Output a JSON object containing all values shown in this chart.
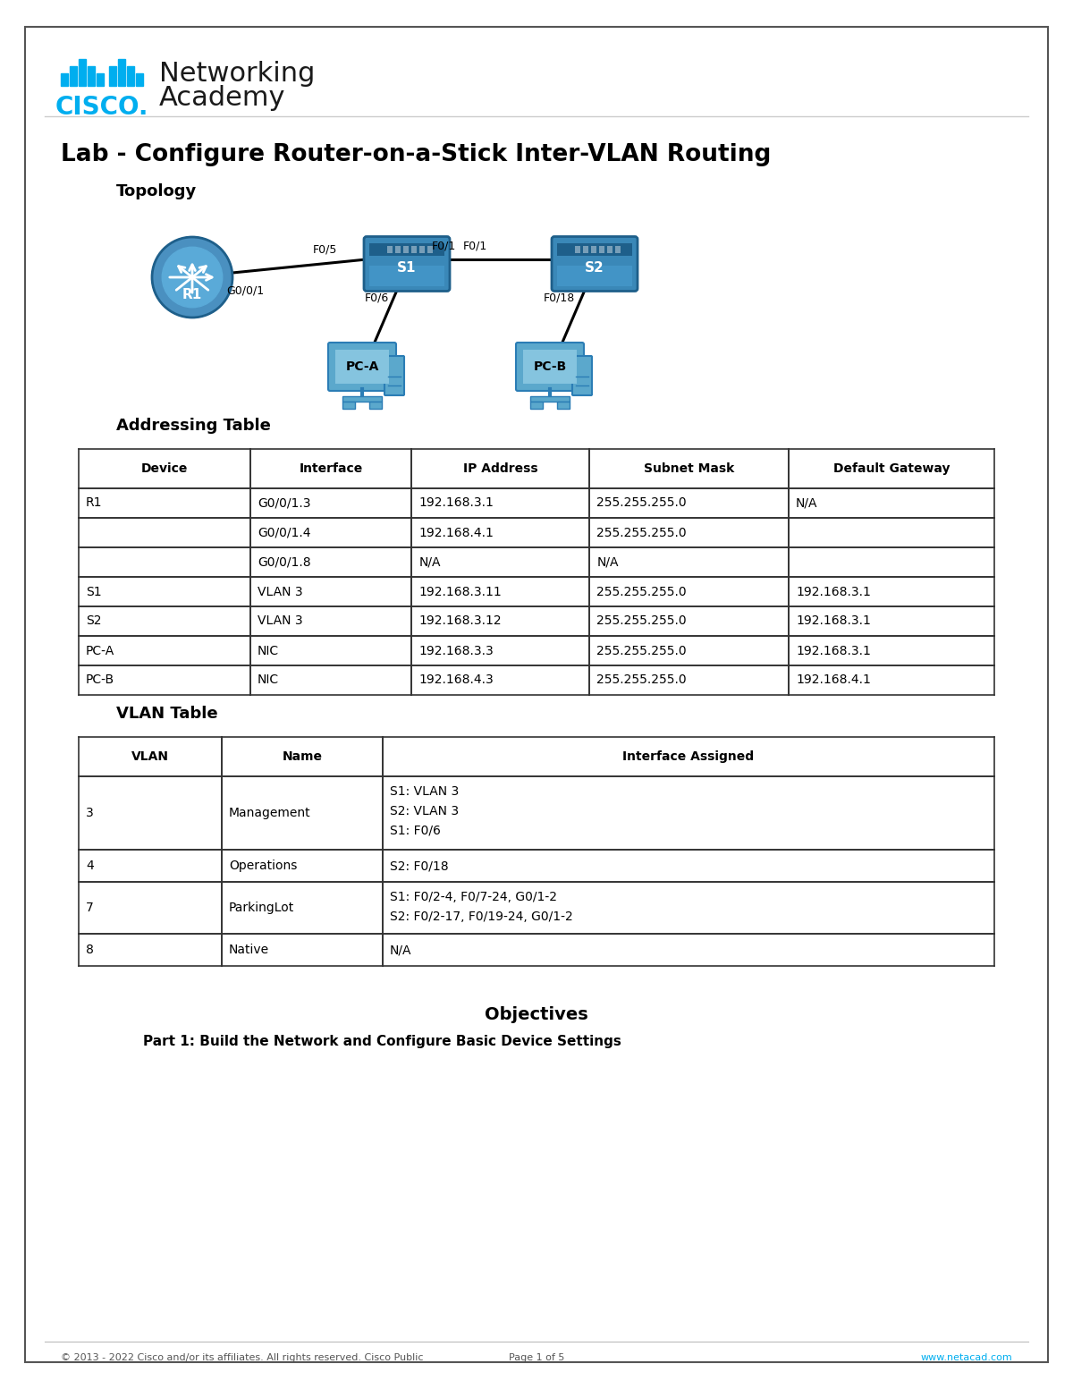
{
  "title": "Lab - Configure Router-on-a-Stick Inter-VLAN Routing",
  "topology_label": "Topology",
  "addressing_table_title": "Addressing Table",
  "vlan_table_title": "VLAN Table",
  "objectives_title": "Objectives",
  "objectives_part1": "Part 1: Build the Network and Configure Basic Device Settings",
  "footer_left": "© 2013 - 2022 Cisco and/or its affiliates. All rights reserved. Cisco Public",
  "footer_center": "Page 1 of 5",
  "footer_right": "www.netacad.com",
  "cisco_blue": "#00aeef",
  "text_dark": "#1a1a1a",
  "addressing_headers": [
    "Device",
    "Interface",
    "IP Address",
    "Subnet Mask",
    "Default Gateway"
  ],
  "addressing_rows": [
    [
      "R1",
      "G0/0/1.3",
      "192.168.3.1",
      "255.255.255.0",
      "N/A"
    ],
    [
      "",
      "G0/0/1.4",
      "192.168.4.1",
      "255.255.255.0",
      ""
    ],
    [
      "",
      "G0/0/1.8",
      "N/A",
      "N/A",
      ""
    ],
    [
      "S1",
      "VLAN 3",
      "192.168.3.11",
      "255.255.255.0",
      "192.168.3.1"
    ],
    [
      "S2",
      "VLAN 3",
      "192.168.3.12",
      "255.255.255.0",
      "192.168.3.1"
    ],
    [
      "PC-A",
      "NIC",
      "192.168.3.3",
      "255.255.255.0",
      "192.168.3.1"
    ],
    [
      "PC-B",
      "NIC",
      "192.168.4.3",
      "255.255.255.0",
      "192.168.4.1"
    ]
  ],
  "vlan_headers": [
    "VLAN",
    "Name",
    "Interface Assigned"
  ],
  "vlan_rows": [
    [
      "3",
      "Management",
      "S1: VLAN 3\nS2: VLAN 3\nS1: F0/6"
    ],
    [
      "4",
      "Operations",
      "S2: F0/18"
    ],
    [
      "7",
      "ParkingLot",
      "S1: F0/2-4, F0/7-24, G0/1-2\nS2: F0/2-17, F0/19-24, G0/1-2"
    ],
    [
      "8",
      "Native",
      "N/A"
    ]
  ],
  "link_labels": {
    "r1_s1_top": "F0/5",
    "r1_s1_bot": "G0/0/1",
    "s1_s2_left": "F0/1",
    "s1_s2_right": "F0/1",
    "s1_pca": "F0/6",
    "s2_pcb": "F0/18"
  }
}
